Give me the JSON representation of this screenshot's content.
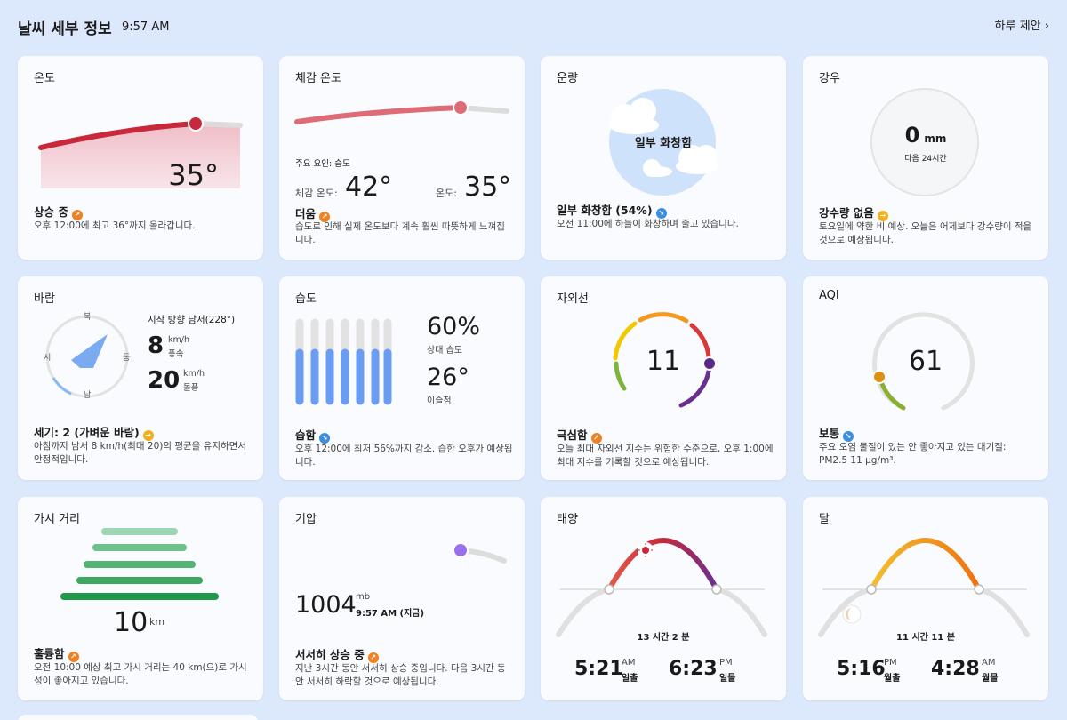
{
  "header": {
    "title": "날씨 세부 정보",
    "time": "9:57 AM",
    "link": "하루 제안"
  },
  "temperature": {
    "title": "온도",
    "value": "35°",
    "status": "상승 중",
    "desc": "오후 12:00에 최고 36°까지 올라갑니다."
  },
  "feels": {
    "title": "체감 온도",
    "factor": "주요 요인: 습도",
    "feels_label": "체감 온도:",
    "feels_value": "42°",
    "temp_label": "온도:",
    "temp_value": "35°",
    "status": "더움",
    "desc": "습도로 인해 실제 온도보다 계속 훨씬 따뜻하게 느껴집니다."
  },
  "cloud": {
    "title": "운량",
    "center": "일부 화창함",
    "status": "일부 화창함 (54%)",
    "desc": "오전 11:00에 하늘이 화창하며 줄고 있습니다."
  },
  "rain": {
    "title": "강우",
    "amount": "0",
    "unit": "mm",
    "sub": "다음 24시간",
    "status": "강수량 없음",
    "desc": "토요일에 약한 비 예상. 오늘은 어제보다 강수량이 적을 것으로 예상됩니다."
  },
  "wind": {
    "title": "바람",
    "dir_text": "시작 방향 남서(228°)",
    "north": "북",
    "south": "남",
    "west": "서",
    "east": "동",
    "speed": "8",
    "speed_unit": "km/h",
    "speed_label": "풍속",
    "gust": "20",
    "gust_unit": "km/h",
    "gust_label": "돌풍",
    "status": "세기: 2 (가벼운 바람)",
    "desc": "아침까지 남서 8 km/h(최대 20)의 평균을 유지하면서 안정적입니다."
  },
  "humidity": {
    "title": "습도",
    "value": "60%",
    "value_label": "상대 습도",
    "dew": "26°",
    "dew_label": "이슬점",
    "status": "습함",
    "desc": "오후 12:00에 최저 56%까지 감소. 습한 오후가 예상됩니다."
  },
  "uv": {
    "title": "자외선",
    "value": "11",
    "status": "극심함",
    "desc": "오늘 최대 자외선 지수는 위험한 수준으로, 오후 1:00에 최대 지수를 기록할 것으로 예상됩니다."
  },
  "aqi": {
    "title": "AQI",
    "value": "61",
    "status": "보통",
    "desc": "주요 오염 물질이 있는 안 좋아지고 있는 대기질: PM2.5 11 µg/m³."
  },
  "visibility": {
    "title": "가시 거리",
    "value": "10",
    "unit": "km",
    "status": "훌륭함",
    "desc": "오전 10:00 예상 최고 가시 거리는 40 km(으)로 가시성이 좋아지고 있습니다."
  },
  "pressure": {
    "title": "기압",
    "value": "1004",
    "unit": "mb",
    "time": "9:57 AM (지금)",
    "status": "서서히 상승 중",
    "desc": "지난 3시간 동안 서서히 상승 중입니다. 다음 3시간 동안 서서히 하락할 것으로 예상됩니다."
  },
  "sun": {
    "title": "태양",
    "duration": "13 시간 2 분",
    "rise": "5:21",
    "rise_ampm": "AM",
    "rise_label": "일출",
    "set": "6:23",
    "set_ampm": "PM",
    "set_label": "일몰"
  },
  "moon": {
    "title": "달",
    "duration": "11 시간 11 분",
    "rise": "5:16",
    "rise_ampm": "PM",
    "rise_label": "월출",
    "set": "4:28",
    "set_ampm": "AM",
    "set_label": "월몰"
  },
  "colors": {
    "bg": "#dce8fb",
    "card": "#f9fbfe",
    "temp": "#c8283a",
    "pressure": "#9a70f0"
  },
  "icons": {
    "trend_up": "trend-up-icon",
    "trend_down": "trend-down-icon",
    "trend_flat": "trend-flat-icon"
  }
}
